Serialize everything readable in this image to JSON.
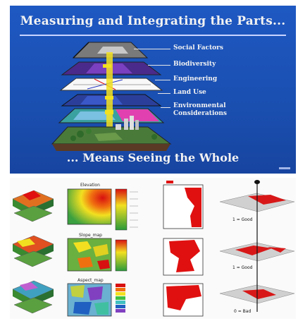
{
  "slide": {
    "title": "Measuring and Integrating the Parts...",
    "subtitle": "... Means Seeing the Whole",
    "layers": [
      {
        "label": "Social Factors"
      },
      {
        "label": "Biodiversity"
      },
      {
        "label": "Engineering"
      },
      {
        "label": "Land Use"
      },
      {
        "label": "Environmental"
      },
      {
        "label": "Considerations"
      }
    ]
  },
  "analysis": {
    "rows": [
      {
        "map_label": "Elevation",
        "result": "1 = Good"
      },
      {
        "map_label": "Slope_map",
        "result": "1 = Good"
      },
      {
        "map_label": "Aspect_map",
        "result": "0 = Bad"
      }
    ],
    "colors": {
      "red": "#e01010",
      "yellow": "#f2e020",
      "green": "#3aa040",
      "blue": "#1a4fb0"
    }
  }
}
